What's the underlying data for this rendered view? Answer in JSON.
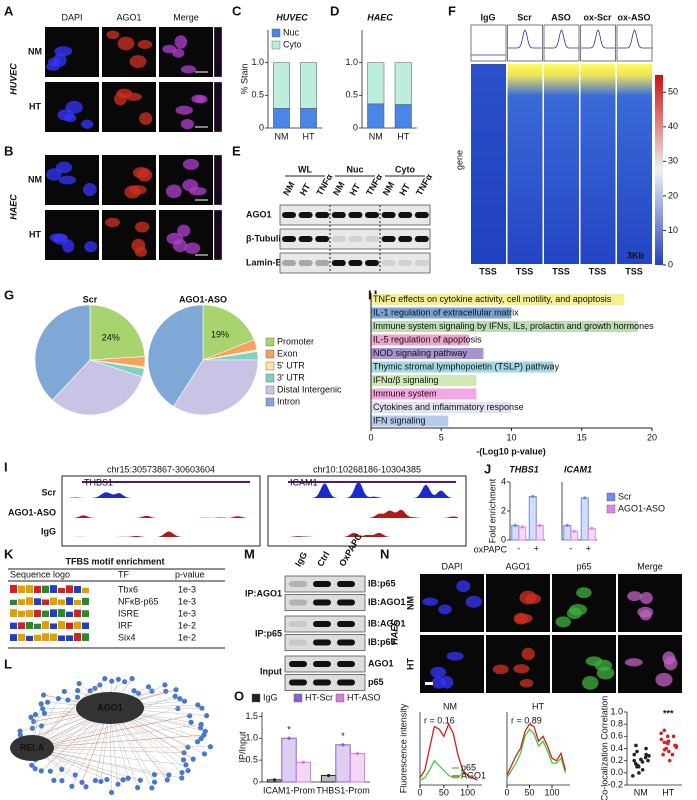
{
  "panels": {
    "A": {
      "letter": "A",
      "cell": "HUVEC",
      "columns": [
        "DAPI",
        "AGO1",
        "Merge"
      ],
      "rows": [
        "NM",
        "HT"
      ]
    },
    "B": {
      "letter": "B",
      "cell": "HAEC",
      "rows": [
        "NM",
        "HT"
      ]
    },
    "C": {
      "letter": "C"
    },
    "D": {
      "letter": "D"
    },
    "E": {
      "letter": "E",
      "groups": [
        "WL",
        "Nuc",
        "Cyto"
      ],
      "lanes": [
        "NM",
        "HT",
        "TNFα",
        "NM",
        "HT",
        "TNFα",
        "NM",
        "HT",
        "TNFα"
      ],
      "rows": [
        "AGO1",
        "β-Tubulin",
        "Lamin-B1"
      ]
    },
    "F": {
      "letter": "F",
      "samples": [
        "IgG",
        "Scr",
        "ASO",
        "ox-Scr",
        "ox-ASO"
      ],
      "ylabel": "gene",
      "xlabel": "TSS",
      "scale": "3Kb",
      "colorbar_ticks": [
        0,
        10,
        20,
        30,
        40,
        50
      ]
    },
    "G": {
      "letter": "G"
    },
    "H": {
      "letter": "H"
    },
    "I": {
      "letter": "I",
      "regions": [
        {
          "coord": "chr15:30573867-30603604",
          "gene": "THBS1"
        },
        {
          "coord": "chr10:10268186-10304385",
          "gene": "ICAM1"
        }
      ],
      "tracks": [
        "Scr",
        "AGO1-ASO",
        "IgG"
      ]
    },
    "J": {
      "letter": "J"
    },
    "K": {
      "letter": "K",
      "title": "TFBS motif enrichment",
      "header": [
        "Sequence logo",
        "TF",
        "p-value"
      ],
      "rows": [
        [
          "Tbx6",
          "1e-3"
        ],
        [
          "NFκB-p65",
          "1e-3"
        ],
        [
          "ISRE",
          "1e-3"
        ],
        [
          "IRF",
          "1e-2"
        ],
        [
          "Six4",
          "1e-2"
        ]
      ]
    },
    "L": {
      "letter": "L",
      "nodes": [
        "AGO1",
        "RELA"
      ]
    },
    "M": {
      "letter": "M",
      "lanes": [
        "IgG",
        "Ctrl",
        "OxPAPC"
      ],
      "groups": [
        "IP:AGO1",
        "IP:p65",
        "Input"
      ],
      "probes": [
        "IB:p65",
        "IB:AGO1",
        "IB:AGO1",
        "IB:p65",
        "AGO1",
        "p65"
      ]
    },
    "N": {
      "letter": "N",
      "cell": "HAEC",
      "columns": [
        "DAPI",
        "AGO1",
        "p65",
        "Merge"
      ],
      "rows": [
        "NM",
        "HT"
      ]
    },
    "O": {
      "letter": "O"
    }
  },
  "chart_data": [
    {
      "type": "bar",
      "stacked": true,
      "title": "HUVEC",
      "ylabel": "% Stain",
      "categories": [
        "NM",
        "HT"
      ],
      "series": [
        {
          "name": "Nuc",
          "color": "#4a86e8",
          "values": [
            0.3,
            0.3
          ]
        },
        {
          "name": "Cyto",
          "color": "#bdeedd",
          "values": [
            0.7,
            0.7
          ]
        }
      ],
      "ylim": [
        0,
        1.5
      ],
      "yticks": [
        0,
        0.5,
        {
          "value": 1,
          "label": "1.0"
        }
      ]
    },
    {
      "type": "bar",
      "stacked": true,
      "title": "HAEC",
      "categories": [
        "NM",
        "HT"
      ],
      "series": [
        {
          "name": "Nuc",
          "color": "#4a86e8",
          "values": [
            0.37,
            0.36
          ]
        },
        {
          "name": "Cyto",
          "color": "#bdeedd",
          "values": [
            0.63,
            0.64
          ]
        }
      ],
      "ylim": [
        0,
        1.5
      ],
      "yticks": [
        0,
        0.5,
        {
          "value": 1,
          "label": "1.0"
        }
      ]
    },
    {
      "type": "pie",
      "title": "Scr",
      "categories": [
        "Promoter",
        "Exon",
        "5' UTR",
        "3' UTR",
        "Distal Intergenic",
        "Intron"
      ],
      "colors": [
        "#a8d46f",
        "#f5a25d",
        "#f9e79f",
        "#7fd1c4",
        "#c9c3e6",
        "#7fa8d6"
      ],
      "values": [
        24,
        3,
        0.5,
        2.5,
        32,
        38
      ],
      "value_labels": [
        "24%",
        null,
        null,
        null,
        null,
        null
      ]
    },
    {
      "type": "pie",
      "title": "AGO1-ASO",
      "categories": [
        "Promoter",
        "Exon",
        "5' UTR",
        "3' UTR",
        "Distal Intergenic",
        "Intron"
      ],
      "colors": [
        "#a8d46f",
        "#f5a25d",
        "#f9e79f",
        "#7fd1c4",
        "#c9c3e6",
        "#7fa8d6"
      ],
      "values": [
        19,
        3,
        0.5,
        2.5,
        34,
        41
      ],
      "value_labels": [
        "19%",
        null,
        null,
        null,
        null,
        null
      ]
    },
    {
      "type": "barh",
      "xlabel": "-(Log10 p-value)",
      "categories": [
        "TNFα effects on cytokine activity, cell motility, and apoptosis",
        "IL-1 regulation of extracellular matrix",
        "Immune system signaling by IFNs, ILs, prolactin and growth hormones",
        "IL-5 regulation of apoptosis",
        "NOD signaling pathway",
        "Thymic stromal lymphopoietin (TSLP) pathway",
        "IFNα/β signaling",
        "Immune system",
        "Cytokines and inflammatory response",
        "IFN signaling"
      ],
      "colors": [
        "#f5f08a",
        "#7aa3d4",
        "#bcdcb4",
        "#eba6cc",
        "#ab92d4",
        "#a3d8e2",
        "#cdeab4",
        "#f2a8e2",
        "#e2e2f2",
        "#b4cbea"
      ],
      "values": [
        18,
        10,
        19,
        7,
        8,
        13,
        7.5,
        7.5,
        10,
        5.5
      ],
      "xlim": [
        0,
        20
      ],
      "xticks": [
        0,
        5,
        10,
        15,
        20
      ]
    },
    {
      "type": "bar",
      "title": "THBS1",
      "ylabel": "Fold enrichment",
      "xlabel": "oxPAPC",
      "categories": [
        "-",
        "+"
      ],
      "series": [
        {
          "name": "Scr",
          "color": "#6d8ee8",
          "values": [
            1,
            3
          ]
        },
        {
          "name": "AGO1-ASO",
          "color": "#d98ae8",
          "values": [
            0.9,
            1
          ]
        }
      ],
      "ylim": [
        0,
        4
      ],
      "yticks": [
        0,
        2,
        4
      ]
    },
    {
      "type": "bar",
      "title": "ICAM1",
      "categories": [
        "-",
        "+"
      ],
      "series": [
        {
          "name": "Scr",
          "color": "#6d8ee8",
          "values": [
            1,
            2.9
          ]
        },
        {
          "name": "AGO1-ASO",
          "color": "#d98ae8",
          "values": [
            0.6,
            0.8
          ]
        }
      ],
      "ylim": [
        0,
        4
      ]
    },
    {
      "type": "line",
      "title": "NM",
      "annotation": "r = 0.16",
      "ylabel": "Fluorescence intensity",
      "x": [
        0,
        10,
        20,
        30,
        40,
        50,
        60,
        70,
        80,
        90,
        100,
        110,
        120
      ],
      "series": [
        {
          "name": "p65",
          "color": "#3fcf3f",
          "values": [
            20,
            30,
            60,
            100,
            80,
            60,
            40,
            30,
            30,
            50,
            40,
            30,
            20
          ]
        },
        {
          "name": "AGO1",
          "color": "#d42020",
          "values": [
            30,
            60,
            150,
            240,
            230,
            200,
            250,
            210,
            120,
            60,
            40,
            30,
            20
          ]
        }
      ],
      "xlim": [
        0,
        130
      ],
      "xticks": [
        0,
        50,
        100
      ],
      "ylim": [
        0,
        300
      ]
    },
    {
      "type": "line",
      "title": "HT",
      "annotation": "r = 0.89",
      "x": [
        0,
        10,
        20,
        30,
        40,
        50,
        60,
        70,
        80,
        90,
        100,
        110,
        120,
        130
      ],
      "series": [
        {
          "name": "p65",
          "color": "#3fcf3f",
          "values": [
            30,
            60,
            90,
            130,
            200,
            230,
            210,
            160,
            180,
            140,
            90,
            90,
            110,
            50
          ]
        },
        {
          "name": "AGO1",
          "color": "#d42020",
          "values": [
            40,
            80,
            120,
            150,
            220,
            250,
            240,
            180,
            200,
            160,
            110,
            100,
            130,
            60
          ]
        }
      ],
      "xlim": [
        0,
        140
      ],
      "xticks": [
        0,
        50,
        100
      ],
      "ylim": [
        0,
        300
      ]
    },
    {
      "type": "strip",
      "ylabel": "Co-localization Correlation",
      "annotation": "***",
      "categories": [
        "NM",
        "HT"
      ],
      "colors": [
        "#222222",
        "#d42020"
      ],
      "values": [
        [
          0.1,
          0.35,
          0.2,
          0.05,
          0.3,
          0.15,
          0.4,
          0.25,
          -0.05,
          0.2,
          0.1,
          0.3,
          0.45,
          0.0,
          0.18,
          0.22,
          0.12,
          0.28
        ],
        [
          0.5,
          0.6,
          0.35,
          0.45,
          0.7,
          0.3,
          0.55,
          0.4,
          0.65,
          0.2,
          0.5,
          0.42,
          0.38,
          0.6,
          0.48,
          0.3,
          0.52,
          0.44
        ]
      ],
      "ylim": [
        -0.2,
        1
      ],
      "yticks": [
        -0.2,
        {
          "value": 0,
          "label": "0.0"
        },
        0.2,
        0.4,
        0.6,
        0.8,
        {
          "value": 1,
          "label": "1.0"
        }
      ]
    },
    {
      "type": "bar",
      "ylabel": "IP/Input",
      "categories": [
        "ICAM1-Prom",
        "THBS1-Prom"
      ],
      "series": [
        {
          "name": "IgG",
          "color": "#222222",
          "values": [
            0.05,
            0.15
          ]
        },
        {
          "name": "HT-Scr",
          "color": "#8a60d0",
          "values": [
            1,
            0.85
          ]
        },
        {
          "name": "HT-ASO",
          "color": "#d47ae0",
          "values": [
            0.45,
            0.65
          ]
        }
      ],
      "annotations": [
        "*",
        "*"
      ],
      "ylim": [
        0,
        1.6
      ],
      "yticks": [
        0,
        0.5,
        {
          "value": 1,
          "label": "1.0"
        },
        1.5
      ]
    }
  ]
}
